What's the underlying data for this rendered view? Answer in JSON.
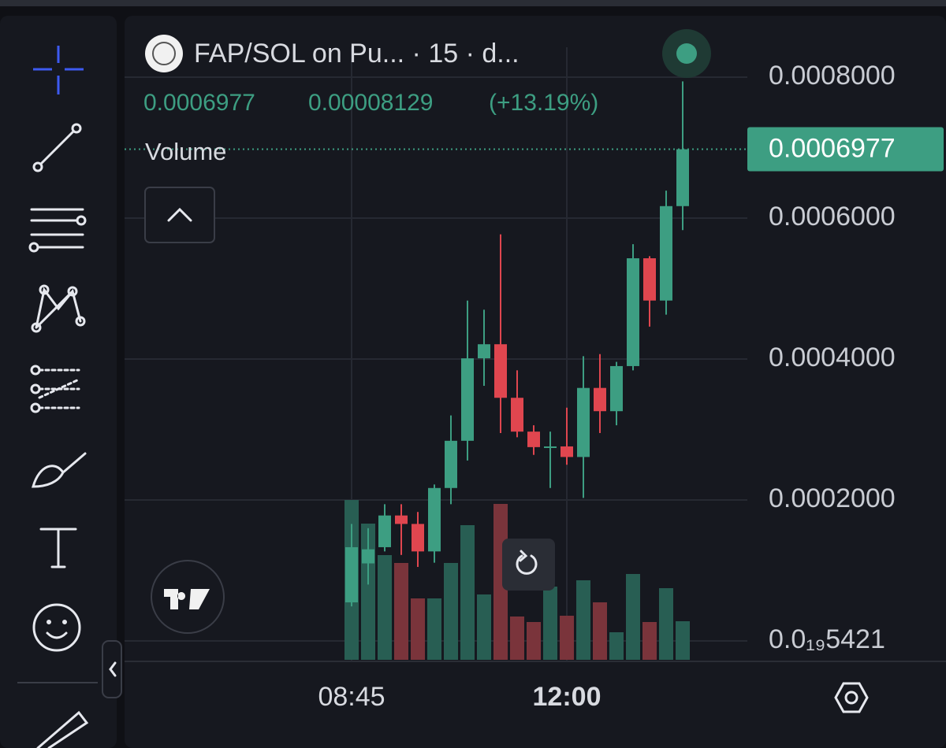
{
  "chart_data": {
    "type": "candlestick",
    "title": "FAP/SOL on Pu... · 15 · d...",
    "legend": {
      "close": "0.0006977",
      "change": "0.00008129",
      "change_pct": "(+13.19%)"
    },
    "volume_label": "Volume",
    "categories": [
      "08:45",
      null,
      null,
      null,
      null,
      null,
      null,
      null,
      null,
      null,
      null,
      null,
      null,
      "12:00",
      null,
      null,
      null,
      null,
      null,
      null,
      null
    ],
    "open": [
      5.47e-05,
      0.00011,
      0.000133,
      0.000178,
      0.000166,
      0.000127,
      0.000217,
      0.000284,
      0.000401,
      0.000421,
      0.000345,
      0.000297,
      0.000275,
      0.000276,
      0.000261,
      0.000359,
      0.000326,
      0.00039,
      0.000543,
      0.000483,
      0.000617
    ],
    "high": [
      0.000166,
      0.00016,
      0.000194,
      0.000194,
      0.000183,
      0.000222,
      0.00032,
      0.000483,
      0.00047,
      0.000577,
      0.000384,
      0.000306,
      0.000297,
      0.000331,
      0.000404,
      0.000407,
      0.000396,
      0.000563,
      0.000546,
      0.000639,
      0.000794
    ],
    "low": [
      4.9e-05,
      8e-05,
      0.000127,
      0.000122,
      0.000105,
      0.000111,
      0.000194,
      0.000256,
      0.000362,
      0.000295,
      0.000289,
      0.000264,
      0.000217,
      0.00025,
      0.000203,
      0.000295,
      0.000306,
      0.000384,
      0.000446,
      0.000463,
      0.000583
    ],
    "close": [
      0.000133,
      0.00013,
      0.000178,
      0.000166,
      0.000127,
      0.000217,
      0.000284,
      0.000401,
      0.000421,
      0.000345,
      0.000297,
      0.000275,
      0.000276,
      0.000261,
      0.000359,
      0.000326,
      0.00039,
      0.000543,
      0.000483,
      0.000617,
      0.0006977
    ],
    "volume": [
      203,
      173,
      133,
      123,
      78,
      78,
      123,
      171,
      83,
      198,
      55,
      48,
      93,
      56,
      101,
      73,
      35,
      109,
      48,
      91,
      49
    ],
    "last_price": {
      "value": 0.0006977,
      "label": "0.0006977"
    },
    "up_color": "#3d9e82",
    "down_color": "#e0464f",
    "volume_up_color": "#285e53",
    "volume_down_color": "#7a343b",
    "ylim": [
      0,
      0.00088
    ],
    "yticks": [
      {
        "value": 5.421e-20,
        "label": "0.0₁₉5421"
      },
      {
        "value": 0.0002,
        "label": "0.0002000"
      },
      {
        "value": 0.0004,
        "label": "0.0004000"
      },
      {
        "value": 0.0006,
        "label": "0.0006000"
      },
      {
        "value": 0.0008,
        "label": "0.0008000"
      }
    ],
    "grid": true
  }
}
